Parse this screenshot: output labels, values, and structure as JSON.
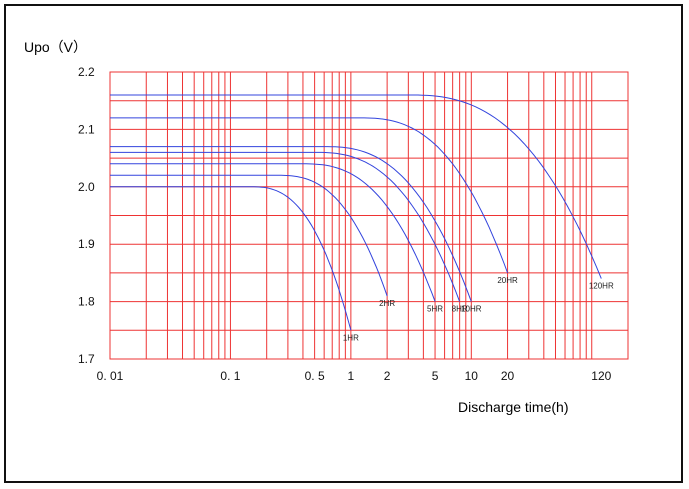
{
  "chart_data": {
    "type": "line",
    "title": "",
    "ylabel": "Upo（V）",
    "xlabel": "Discharge time(h)",
    "xscale": "log",
    "xlim": [
      0.01,
      200
    ],
    "ylim": [
      1.7,
      2.2
    ],
    "grid": true,
    "x_tick_labels": [
      "0. 01",
      "0. 1",
      "0. 5",
      "1",
      "2",
      "5",
      "10",
      "20",
      "120"
    ],
    "x_ticks": [
      0.01,
      0.1,
      0.5,
      1,
      2,
      5,
      10,
      20,
      120
    ],
    "y_tick_labels": [
      "2.2",
      "2.1",
      "2.0",
      "1.9",
      "1.8",
      "1.7"
    ],
    "y_ticks": [
      2.2,
      2.1,
      2.0,
      1.9,
      1.8,
      1.7
    ],
    "series": [
      {
        "name": "1HR",
        "flat_v": 2.0,
        "knee_x": 0.15,
        "end_x": 1.0,
        "end_v": 1.75
      },
      {
        "name": "2HR",
        "flat_v": 2.02,
        "knee_x": 0.25,
        "end_x": 2.0,
        "end_v": 1.81
      },
      {
        "name": "5HR",
        "flat_v": 2.04,
        "knee_x": 0.4,
        "end_x": 5.0,
        "end_v": 1.8
      },
      {
        "name": "8HR",
        "flat_v": 2.06,
        "knee_x": 0.5,
        "end_x": 8.0,
        "end_v": 1.8
      },
      {
        "name": "10HR",
        "flat_v": 2.07,
        "knee_x": 0.6,
        "end_x": 10.0,
        "end_v": 1.8
      },
      {
        "name": "20HR",
        "flat_v": 2.12,
        "knee_x": 1.2,
        "end_x": 20.0,
        "end_v": 1.85
      },
      {
        "name": "120HR",
        "flat_v": 2.16,
        "knee_x": 3.0,
        "end_x": 120.0,
        "end_v": 1.84
      }
    ]
  },
  "colors": {
    "grid": "#ee3333",
    "curve": "#3344dd",
    "frame": "#111111"
  }
}
